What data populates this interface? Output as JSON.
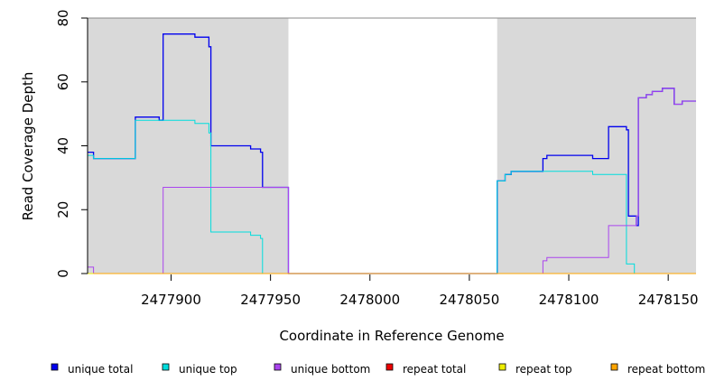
{
  "chart_data": {
    "type": "line",
    "title": "",
    "xlabel": "Coordinate in Reference Genome",
    "ylabel": "Read Coverage Depth",
    "xlim": [
      2477858,
      2478164
    ],
    "ylim": [
      0,
      80
    ],
    "x_ticks": [
      2477900,
      2477950,
      2478000,
      2478050,
      2478100,
      2478150
    ],
    "y_ticks": [
      0,
      20,
      40,
      60,
      80
    ],
    "shaded_regions": [
      [
        2477858,
        2477959
      ],
      [
        2478064,
        2478164
      ]
    ],
    "grid": false,
    "legend_position": "bottom",
    "series": [
      {
        "name": "unique total",
        "color": "#0000ee",
        "points": [
          [
            2477858,
            38
          ],
          [
            2477861,
            38
          ],
          [
            2477861,
            36
          ],
          [
            2477882,
            36
          ],
          [
            2477882,
            49
          ],
          [
            2477894,
            49
          ],
          [
            2477894,
            48
          ],
          [
            2477896,
            48
          ],
          [
            2477896,
            75
          ],
          [
            2477912,
            75
          ],
          [
            2477912,
            74
          ],
          [
            2477919,
            74
          ],
          [
            2477919,
            71
          ],
          [
            2477920,
            71
          ],
          [
            2477920,
            40
          ],
          [
            2477940,
            40
          ],
          [
            2477940,
            39
          ],
          [
            2477945,
            39
          ],
          [
            2477945,
            38
          ],
          [
            2477946,
            38
          ],
          [
            2477946,
            27
          ],
          [
            2477959,
            27
          ],
          [
            2477959,
            0
          ],
          [
            2478064,
            0
          ],
          [
            2478064,
            29
          ],
          [
            2478068,
            29
          ],
          [
            2478068,
            31
          ],
          [
            2478071,
            31
          ],
          [
            2478071,
            32
          ],
          [
            2478087,
            32
          ],
          [
            2478087,
            36
          ],
          [
            2478089,
            36
          ],
          [
            2478089,
            37
          ],
          [
            2478112,
            37
          ],
          [
            2478112,
            36
          ],
          [
            2478120,
            36
          ],
          [
            2478120,
            46
          ],
          [
            2478129,
            46
          ],
          [
            2478129,
            45
          ],
          [
            2478130,
            45
          ],
          [
            2478130,
            18
          ],
          [
            2478134,
            18
          ],
          [
            2478134,
            15
          ],
          [
            2478135,
            15
          ],
          [
            2478135,
            55
          ],
          [
            2478139,
            55
          ],
          [
            2478139,
            56
          ],
          [
            2478142,
            56
          ],
          [
            2478142,
            57
          ],
          [
            2478147,
            57
          ],
          [
            2478147,
            58
          ],
          [
            2478153,
            58
          ],
          [
            2478153,
            53
          ],
          [
            2478157,
            53
          ],
          [
            2478157,
            54
          ],
          [
            2478164,
            54
          ]
        ]
      },
      {
        "name": "unique top",
        "color": "#00dddd",
        "points": [
          [
            2477858,
            37
          ],
          [
            2477861,
            37
          ],
          [
            2477861,
            36
          ],
          [
            2477882,
            36
          ],
          [
            2477882,
            48
          ],
          [
            2477912,
            48
          ],
          [
            2477912,
            47
          ],
          [
            2477919,
            47
          ],
          [
            2477919,
            44
          ],
          [
            2477920,
            44
          ],
          [
            2477920,
            13
          ],
          [
            2477940,
            13
          ],
          [
            2477940,
            12
          ],
          [
            2477945,
            12
          ],
          [
            2477945,
            11
          ],
          [
            2477946,
            11
          ],
          [
            2477946,
            0
          ],
          [
            2478064,
            0
          ],
          [
            2478064,
            29
          ],
          [
            2478068,
            29
          ],
          [
            2478068,
            31
          ],
          [
            2478071,
            31
          ],
          [
            2478071,
            32
          ],
          [
            2478112,
            32
          ],
          [
            2478112,
            31
          ],
          [
            2478129,
            31
          ],
          [
            2478129,
            3
          ],
          [
            2478133,
            3
          ],
          [
            2478133,
            0
          ],
          [
            2478164,
            0
          ]
        ]
      },
      {
        "name": "unique bottom",
        "color": "#aa44ee",
        "points": [
          [
            2477858,
            2
          ],
          [
            2477861,
            2
          ],
          [
            2477861,
            0
          ],
          [
            2477896,
            0
          ],
          [
            2477896,
            27
          ],
          [
            2477959,
            27
          ],
          [
            2477959,
            0
          ],
          [
            2478087,
            0
          ],
          [
            2478087,
            4
          ],
          [
            2478089,
            4
          ],
          [
            2478089,
            5
          ],
          [
            2478120,
            5
          ],
          [
            2478120,
            15
          ],
          [
            2478134,
            15
          ],
          [
            2478134,
            18
          ],
          [
            2478135,
            18
          ],
          [
            2478135,
            55
          ],
          [
            2478139,
            55
          ],
          [
            2478139,
            56
          ],
          [
            2478142,
            56
          ],
          [
            2478142,
            57
          ],
          [
            2478147,
            57
          ],
          [
            2478147,
            58
          ],
          [
            2478153,
            58
          ],
          [
            2478153,
            53
          ],
          [
            2478157,
            53
          ],
          [
            2478157,
            54
          ],
          [
            2478164,
            54
          ]
        ]
      },
      {
        "name": "repeat total",
        "color": "#ee0000",
        "points": [
          [
            2477858,
            0
          ],
          [
            2478164,
            0
          ]
        ]
      },
      {
        "name": "repeat top",
        "color": "#eeee00",
        "points": [
          [
            2477858,
            0
          ],
          [
            2478164,
            0
          ]
        ]
      },
      {
        "name": "repeat bottom",
        "color": "#ffa500",
        "points": [
          [
            2477861,
            0
          ],
          [
            2477959,
            0
          ],
          [
            2478064,
            0
          ],
          [
            2478164,
            0
          ]
        ]
      }
    ]
  }
}
